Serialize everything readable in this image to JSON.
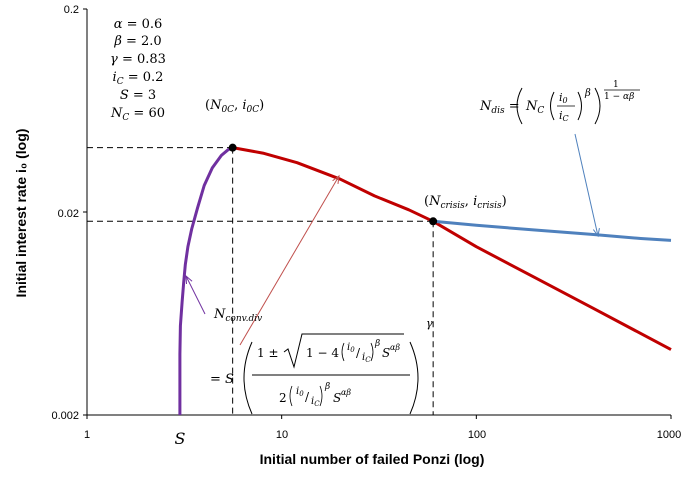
{
  "chart_data": {
    "type": "line",
    "xlabel": "Initial number of failed Ponzi (log)",
    "ylabel": "Initial interest rate i₀ (log)",
    "x_scale": "log",
    "y_scale": "log",
    "xlim": [
      1,
      1000
    ],
    "ylim": [
      0.002,
      0.2
    ],
    "x_ticks": [
      "1",
      "10",
      "100",
      "1000"
    ],
    "y_ticks": [
      "0.002",
      "0.02",
      "0.2"
    ],
    "grid": false,
    "params": [
      {
        "name": "α",
        "value": "0.6"
      },
      {
        "name": "β",
        "value": "2.0"
      },
      {
        "name": "γ",
        "value": "0.83"
      },
      {
        "name": "i",
        "sub": "C",
        "value": "0.2"
      },
      {
        "name": "S",
        "sub": "",
        "value": "3"
      },
      {
        "name": "N",
        "sub": "C",
        "value": "60"
      }
    ],
    "x_marker_label": "S",
    "series": [
      {
        "id": "conv-div",
        "color": "#7030a0",
        "x": [
          3.0,
          3.0,
          3.0,
          3.02,
          3.08,
          3.14,
          3.2,
          3.3,
          3.45,
          3.7,
          4.0,
          4.4,
          4.9,
          5.3,
          5.6
        ],
        "y": [
          0.002,
          0.003,
          0.004,
          0.0055,
          0.0072,
          0.009,
          0.011,
          0.0135,
          0.0165,
          0.021,
          0.027,
          0.033,
          0.038,
          0.0405,
          0.0415
        ]
      },
      {
        "id": "main",
        "color": "#c00000",
        "x": [
          5.6,
          8,
          12,
          20,
          30,
          45,
          60,
          100,
          200,
          400,
          1000
        ],
        "y": [
          0.0415,
          0.039,
          0.035,
          0.029,
          0.024,
          0.0205,
          0.018,
          0.0135,
          0.0095,
          0.0067,
          0.0042
        ]
      },
      {
        "id": "dis",
        "color": "#4f81bd",
        "x": [
          60,
          100,
          200,
          400,
          700,
          1000
        ],
        "y": [
          0.018,
          0.0172,
          0.0163,
          0.0155,
          0.0148,
          0.0145
        ]
      }
    ],
    "points": [
      {
        "x": 5.6,
        "y": 0.0415,
        "label": "(N0C, i0C)"
      },
      {
        "x": 60,
        "y": 0.018,
        "label": "(Ncrisis, icrisis)"
      }
    ],
    "annotations": {
      "n_dis_formula": "N_dis = ( N_C ( i_0 / i_C )^β )^(1/(1−αβ))",
      "n_conv_formula": "N_conv.div = S ( (1 ± √(1 − 4 (i_0/i_C)^β S^αβ)) / (2 (i_0/i_C)^β S^αβ) )^γ"
    }
  }
}
